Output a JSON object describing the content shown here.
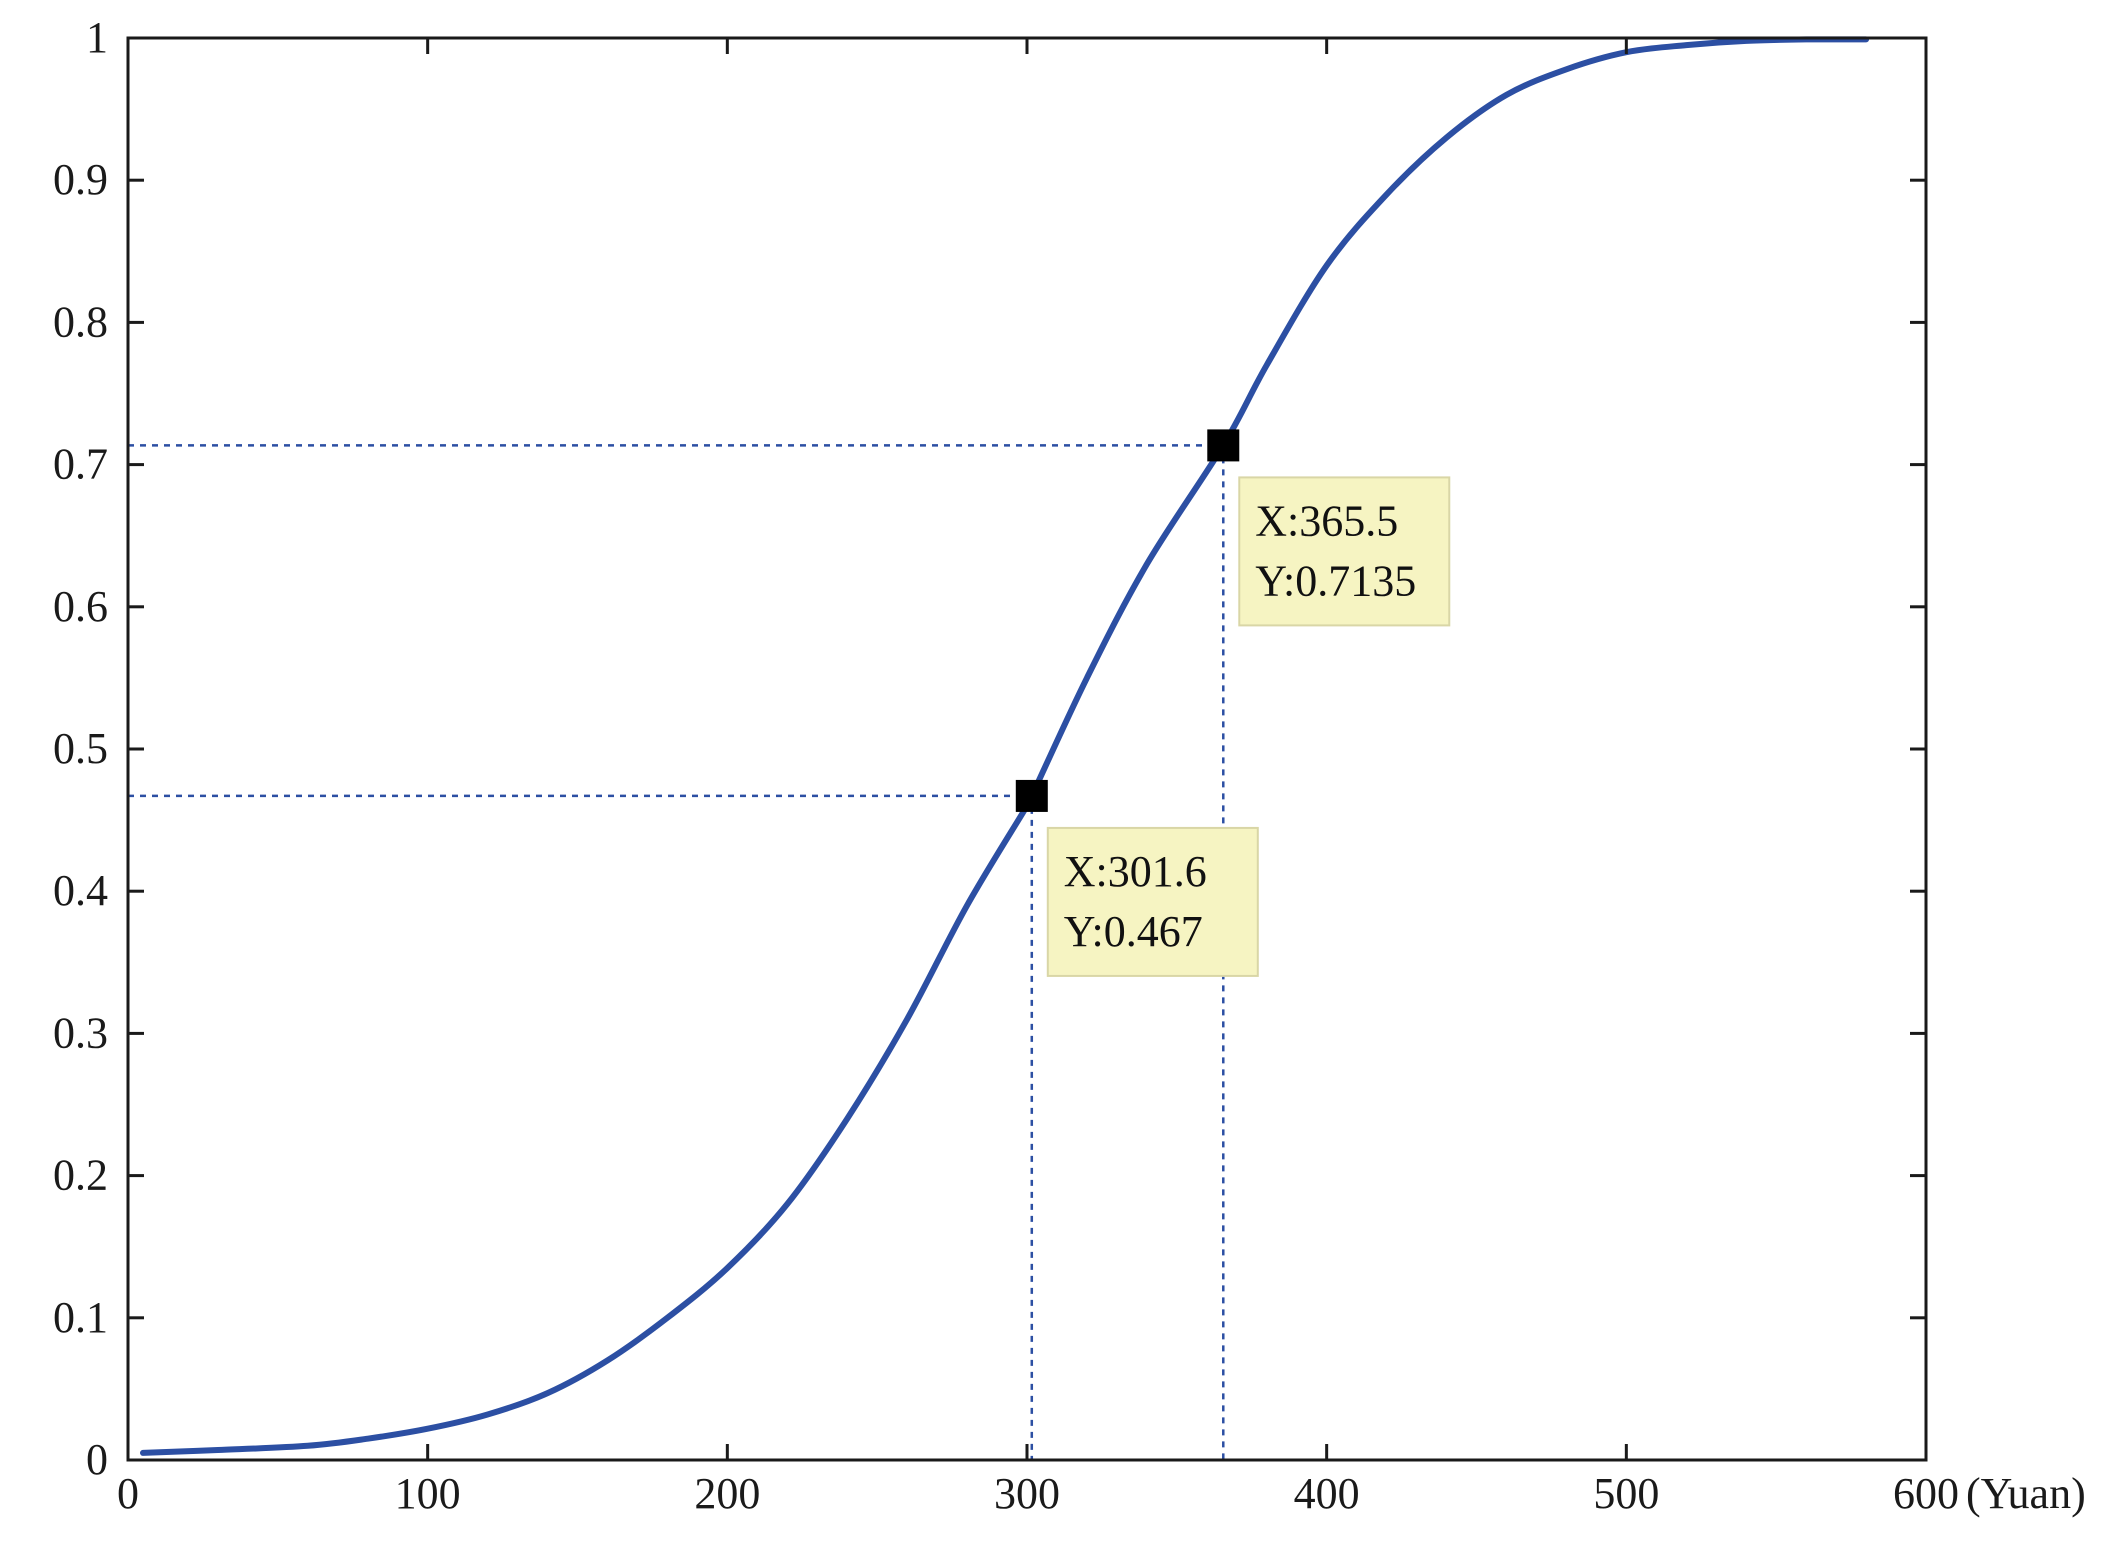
{
  "chart_data": {
    "type": "line",
    "title": "",
    "xlabel": "(Yuan)",
    "ylabel": "",
    "xlim": [
      0,
      600
    ],
    "ylim": [
      0,
      1
    ],
    "grid": false,
    "x_ticks": [
      0,
      100,
      200,
      300,
      400,
      500,
      600
    ],
    "y_ticks": [
      0,
      0.1,
      0.2,
      0.3,
      0.4,
      0.5,
      0.6,
      0.7,
      0.8,
      0.9,
      1
    ],
    "x_tick_labels": [
      "0",
      "100",
      "200",
      "300",
      "400",
      "500",
      "600"
    ],
    "y_tick_labels": [
      "0",
      "0.1",
      "0.2",
      "0.3",
      "0.4",
      "0.5",
      "0.6",
      "0.7",
      "0.8",
      "0.9",
      "1"
    ],
    "line_color": "#2c4fa3",
    "guide_color": "#2c4fa3",
    "datatip_bg": "#f6f4c2",
    "series": [
      {
        "x": [
          5,
          30,
          60,
          80,
          100,
          120,
          140,
          160,
          180,
          200,
          220,
          240,
          260,
          280,
          300,
          301.6,
          320,
          340,
          365.5,
          380,
          400,
          420,
          440,
          460,
          480,
          500,
          520,
          540,
          560,
          580
        ],
        "y": [
          0.005,
          0.007,
          0.01,
          0.015,
          0.022,
          0.032,
          0.047,
          0.07,
          0.1,
          0.135,
          0.18,
          0.24,
          0.31,
          0.39,
          0.46,
          0.467,
          0.55,
          0.63,
          0.7135,
          0.77,
          0.84,
          0.89,
          0.93,
          0.96,
          0.978,
          0.99,
          0.995,
          0.998,
          0.999,
          0.999
        ]
      }
    ],
    "datatips": [
      {
        "x": 301.6,
        "y": 0.467,
        "line1": "X:301.6",
        "line2": "Y:0.467"
      },
      {
        "x": 365.5,
        "y": 0.7135,
        "line1": "X:365.5",
        "line2": "Y:0.7135"
      }
    ]
  }
}
